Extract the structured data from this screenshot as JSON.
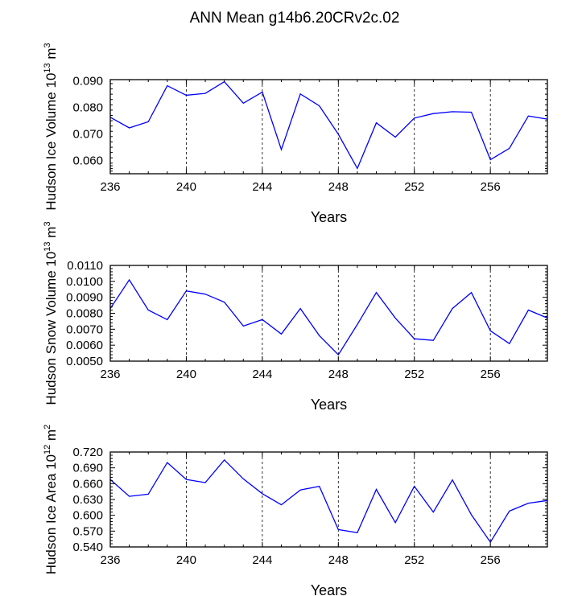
{
  "title": "ANN Mean g14b6.20CRv2c.02",
  "colors": {
    "line": "#0000ff",
    "axis": "#000000",
    "grid": "#000000"
  },
  "chart_data": [
    {
      "type": "line",
      "ylabel": {
        "main": "Hudson Ice Volume 10",
        "exp": "13",
        "unit": " m",
        "unit_exp": "3"
      },
      "xlabel": "Years",
      "xlim": [
        236,
        259
      ],
      "ylim": [
        0.055,
        0.0905
      ],
      "xticks": [
        "236",
        "240",
        "244",
        "248",
        "252",
        "256"
      ],
      "yticks": [
        "0.060",
        "0.070",
        "0.080",
        "0.090"
      ],
      "series": [
        {
          "name": "Hudson Ice Volume",
          "x": [
            236,
            237,
            238,
            239,
            240,
            241,
            242,
            243,
            244,
            245,
            246,
            247,
            248,
            249,
            250,
            251,
            252,
            253,
            254,
            255,
            256,
            257,
            258,
            259
          ],
          "values": [
            0.0763,
            0.0723,
            0.0746,
            0.0882,
            0.0846,
            0.0853,
            0.0897,
            0.0816,
            0.0858,
            0.0641,
            0.0851,
            0.0806,
            0.0699,
            0.057,
            0.0742,
            0.0688,
            0.076,
            0.0777,
            0.0784,
            0.0782,
            0.0603,
            0.0646,
            0.0768,
            0.0756
          ]
        }
      ]
    },
    {
      "type": "line",
      "ylabel": {
        "main": "Hudson Snow Volume 10",
        "exp": "13",
        "unit": " m",
        "unit_exp": "3"
      },
      "xlabel": "Years",
      "xlim": [
        236,
        259
      ],
      "ylim": [
        0.005,
        0.011
      ],
      "xticks": [
        "236",
        "240",
        "244",
        "248",
        "252",
        "256"
      ],
      "yticks": [
        "0.0050",
        "0.0060",
        "0.0070",
        "0.0080",
        "0.0090",
        "0.0100",
        "0.0110"
      ],
      "series": [
        {
          "name": "Hudson Snow Volume",
          "x": [
            236,
            237,
            238,
            239,
            240,
            241,
            242,
            243,
            244,
            245,
            246,
            247,
            248,
            249,
            250,
            251,
            252,
            253,
            254,
            255,
            256,
            257,
            258,
            259
          ],
          "values": [
            0.0083,
            0.0101,
            0.0082,
            0.0076,
            0.0094,
            0.0092,
            0.0087,
            0.0072,
            0.0076,
            0.0067,
            0.0083,
            0.0066,
            0.0054,
            0.0073,
            0.0093,
            0.0077,
            0.0064,
            0.0063,
            0.0083,
            0.0093,
            0.0069,
            0.0061,
            0.0082,
            0.0077
          ]
        }
      ]
    },
    {
      "type": "line",
      "ylabel": {
        "main": "Hudson Ice Area 10",
        "exp": "12",
        "unit": " m",
        "unit_exp": "2"
      },
      "xlabel": "Years",
      "xlim": [
        236,
        259
      ],
      "ylim": [
        0.54,
        0.72
      ],
      "xticks": [
        "236",
        "240",
        "244",
        "248",
        "252",
        "256"
      ],
      "yticks": [
        "0.540",
        "0.570",
        "0.600",
        "0.630",
        "0.660",
        "0.690",
        "0.720"
      ],
      "series": [
        {
          "name": "Hudson Ice Area",
          "x": [
            236,
            237,
            238,
            239,
            240,
            241,
            242,
            243,
            244,
            245,
            246,
            247,
            248,
            249,
            250,
            251,
            252,
            253,
            254,
            255,
            256,
            257,
            258,
            259
          ],
          "values": [
            0.668,
            0.636,
            0.64,
            0.7,
            0.668,
            0.662,
            0.705,
            0.669,
            0.641,
            0.62,
            0.648,
            0.655,
            0.573,
            0.567,
            0.649,
            0.586,
            0.655,
            0.606,
            0.667,
            0.601,
            0.549,
            0.608,
            0.623,
            0.628
          ]
        }
      ]
    }
  ]
}
